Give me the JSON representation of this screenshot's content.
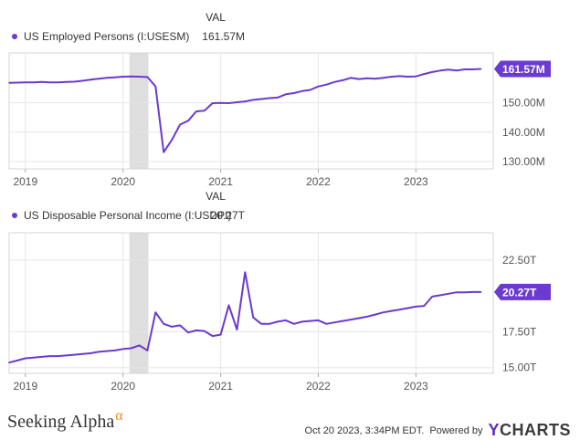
{
  "chart_data": [
    {
      "type": "line",
      "column_header": "VAL",
      "series": [
        {
          "name": "US Employed Persons (I:USESM)",
          "legend_value": "161.57M",
          "color": "#6a3ad1",
          "x": [
            "2018-11",
            "2018-12",
            "2019-01",
            "2019-02",
            "2019-03",
            "2019-04",
            "2019-05",
            "2019-06",
            "2019-07",
            "2019-08",
            "2019-09",
            "2019-10",
            "2019-11",
            "2019-12",
            "2020-01",
            "2020-02",
            "2020-03",
            "2020-04",
            "2020-05",
            "2020-06",
            "2020-07",
            "2020-08",
            "2020-09",
            "2020-10",
            "2020-11",
            "2020-12",
            "2021-01",
            "2021-02",
            "2021-03",
            "2021-04",
            "2021-05",
            "2021-06",
            "2021-07",
            "2021-08",
            "2021-09",
            "2021-10",
            "2021-11",
            "2021-12",
            "2022-01",
            "2022-02",
            "2022-03",
            "2022-04",
            "2022-05",
            "2022-06",
            "2022-07",
            "2022-08",
            "2022-09",
            "2022-10",
            "2022-11",
            "2022-12",
            "2023-01",
            "2023-02",
            "2023-03",
            "2023-04",
            "2023-05",
            "2023-06",
            "2023-07",
            "2023-08",
            "2023-09"
          ],
          "values": [
            156.8,
            156.9,
            157.0,
            157.0,
            157.1,
            157.0,
            157.0,
            157.1,
            157.2,
            157.5,
            157.9,
            158.2,
            158.5,
            158.7,
            158.9,
            159.0,
            158.9,
            158.8,
            155.6,
            133.2,
            137.4,
            142.6,
            143.9,
            147.1,
            147.3,
            149.9,
            150.0,
            149.9,
            150.2,
            150.5,
            151.0,
            151.3,
            151.6,
            151.8,
            152.9,
            153.3,
            154.0,
            154.4,
            155.6,
            156.2,
            157.1,
            157.7,
            158.5,
            158.1,
            158.4,
            158.2,
            158.5,
            158.9,
            159.1,
            158.9,
            159.0,
            159.8,
            160.5,
            161.0,
            161.3,
            161.0,
            161.4,
            161.4,
            161.57
          ],
          "last_label": "161.57M"
        }
      ],
      "x_ticks": [
        "2019",
        "2020",
        "2021",
        "2022",
        "2023"
      ],
      "y_ticks": [
        "150.00M",
        "140.00M",
        "130.00M"
      ],
      "y_tick_values": [
        150,
        140,
        130
      ],
      "ylim": [
        127.5,
        167
      ],
      "recession_shading": [
        "2020-02",
        "2020-04"
      ],
      "grid": true
    },
    {
      "type": "line",
      "column_header": "VAL",
      "series": [
        {
          "name": "US Disposable Personal Income (I:USDPI)",
          "legend_value": "20.27T",
          "color": "#6a3ad1",
          "x": [
            "2018-11",
            "2018-12",
            "2019-01",
            "2019-02",
            "2019-03",
            "2019-04",
            "2019-05",
            "2019-06",
            "2019-07",
            "2019-08",
            "2019-09",
            "2019-10",
            "2019-11",
            "2019-12",
            "2020-01",
            "2020-02",
            "2020-03",
            "2020-04",
            "2020-05",
            "2020-06",
            "2020-07",
            "2020-08",
            "2020-09",
            "2020-10",
            "2020-11",
            "2020-12",
            "2021-01",
            "2021-02",
            "2021-03",
            "2021-04",
            "2021-05",
            "2021-06",
            "2021-07",
            "2021-08",
            "2021-09",
            "2021-10",
            "2021-11",
            "2021-12",
            "2022-01",
            "2022-02",
            "2022-03",
            "2022-04",
            "2022-05",
            "2022-06",
            "2022-07",
            "2022-08",
            "2022-09",
            "2022-10",
            "2022-11",
            "2022-12",
            "2023-01",
            "2023-02",
            "2023-03",
            "2023-04",
            "2023-05",
            "2023-06",
            "2023-07",
            "2023-08",
            "2023-09"
          ],
          "values": [
            15.35,
            15.5,
            15.65,
            15.7,
            15.75,
            15.8,
            15.8,
            15.85,
            15.9,
            15.95,
            16.0,
            16.1,
            16.15,
            16.2,
            16.3,
            16.35,
            16.55,
            16.2,
            18.85,
            18.05,
            17.85,
            17.95,
            17.45,
            17.6,
            17.55,
            17.2,
            17.3,
            19.35,
            17.65,
            21.65,
            18.5,
            18.05,
            18.05,
            18.2,
            18.3,
            18.05,
            18.2,
            18.25,
            18.3,
            18.05,
            18.15,
            18.25,
            18.35,
            18.45,
            18.55,
            18.7,
            18.85,
            18.95,
            19.05,
            19.15,
            19.25,
            19.3,
            19.95,
            20.05,
            20.15,
            20.25,
            20.25,
            20.27,
            20.27
          ],
          "last_label": "20.27T"
        }
      ],
      "x_ticks": [
        "2019",
        "2020",
        "2021",
        "2022",
        "2023"
      ],
      "y_ticks": [
        "22.50T",
        "17.50T",
        "15.00T"
      ],
      "y_tick_values": [
        22.5,
        17.5,
        15.0
      ],
      "ylim": [
        14.6,
        24.4
      ],
      "recession_shading": [
        "2020-02",
        "2020-04"
      ],
      "grid": true
    }
  ],
  "footer": {
    "brand_text": "Seeking Alpha",
    "brand_alpha": "α",
    "timestamp": "Oct 20 2023, 3:34PM EDT.",
    "powered_by": "Powered by",
    "ycharts_y": "Y",
    "ycharts_rest": "CHARTS"
  }
}
